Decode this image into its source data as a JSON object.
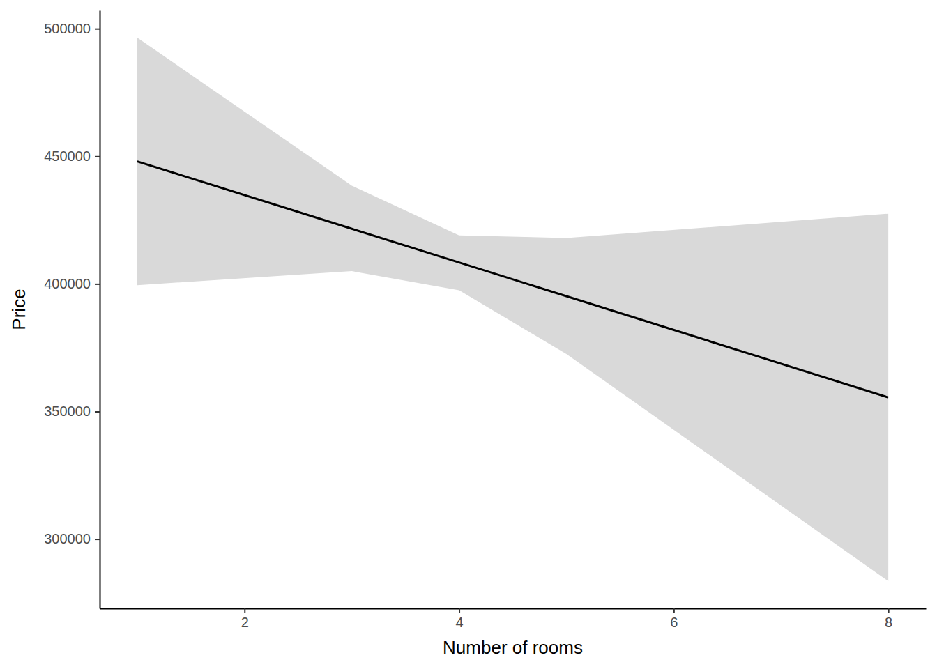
{
  "chart_data": {
    "type": "line",
    "x_label": "Number of rooms",
    "y_label": "Price",
    "x": [
      1,
      3,
      4,
      5,
      8
    ],
    "values": [
      448000,
      421600,
      408400,
      395200,
      355500
    ],
    "lower": [
      399500,
      405000,
      397500,
      372500,
      283500
    ],
    "upper": [
      496500,
      438500,
      419000,
      418000,
      427500
    ],
    "color": "#000000",
    "xlim": [
      0.65,
      8.35
    ],
    "xticks": [
      2,
      4,
      6,
      8
    ],
    "ylim": [
      272850,
      507150
    ],
    "yticks": [
      300000,
      350000,
      400000,
      450000,
      500000
    ],
    "grid": false
  }
}
